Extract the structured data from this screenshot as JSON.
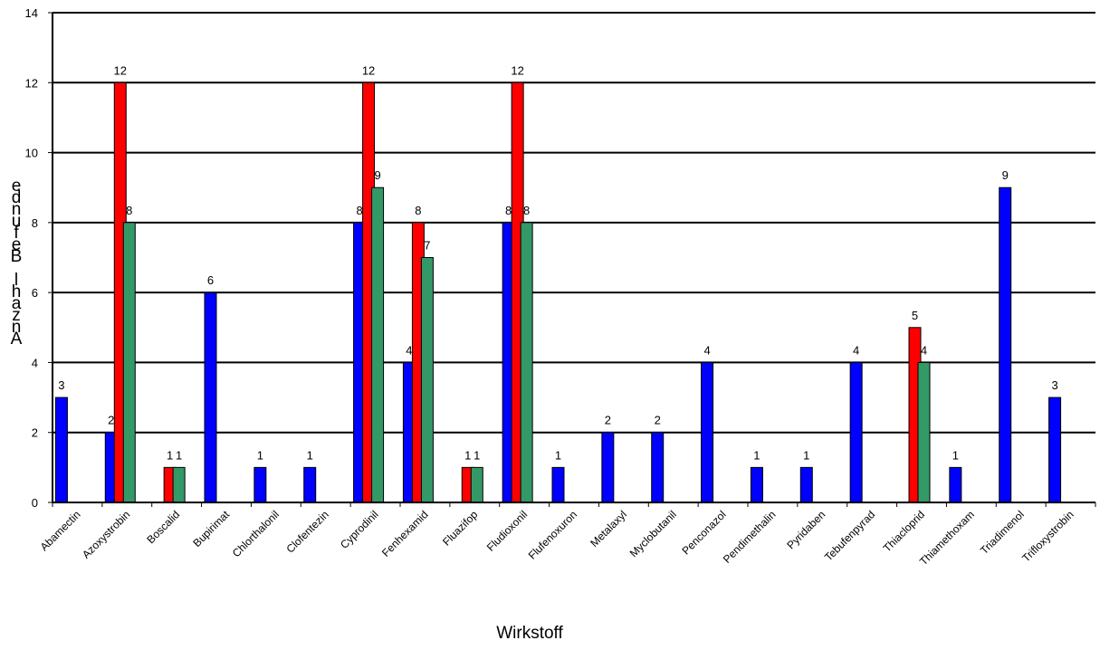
{
  "chart_data": {
    "type": "bar",
    "title": "",
    "xlabel": "Wirkstoff",
    "ylabel": "Anzahl Befunde",
    "ylim": [
      0,
      14
    ],
    "yticks": [
      0,
      2,
      4,
      6,
      8,
      10,
      12,
      14
    ],
    "grid": "horizontal",
    "categories": [
      "Abamectin",
      "Azoxystrobin",
      "Boscalid",
      "Bupirimat",
      "Chlorthalonil",
      "Clofentezin",
      "Cyprodinil",
      "Fenhexamid",
      "Fluazifop",
      "Fludioxonil",
      "Flufenoxuron",
      "Metalaxyl",
      "Myclobutanil",
      "Penconazol",
      "Pendimethalin",
      "Pyridaben",
      "Tebufenpyrad",
      "Thiacloprid",
      "Thiamethoxam",
      "Triadimenol",
      "Trifloxystrobin"
    ],
    "series": [
      {
        "color": "#0000ff",
        "values": [
          3,
          2,
          null,
          6,
          1,
          1,
          8,
          4,
          null,
          8,
          1,
          2,
          2,
          4,
          1,
          1,
          4,
          null,
          1,
          9,
          3
        ]
      },
      {
        "color": "#ff0000",
        "values": [
          null,
          12,
          1,
          null,
          null,
          null,
          12,
          8,
          1,
          12,
          null,
          null,
          null,
          null,
          null,
          null,
          null,
          5,
          null,
          null,
          null
        ]
      },
      {
        "color": "#339966",
        "values": [
          null,
          8,
          1,
          null,
          null,
          null,
          9,
          7,
          1,
          8,
          null,
          null,
          null,
          null,
          null,
          null,
          null,
          4,
          null,
          null,
          null
        ]
      }
    ]
  }
}
